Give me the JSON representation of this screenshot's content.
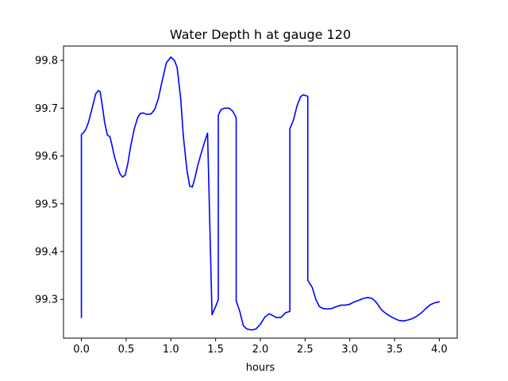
{
  "chart_data": {
    "type": "line",
    "title": "Water Depth h at gauge 120",
    "xlabel": "hours",
    "ylabel": "",
    "xlim": [
      -0.2,
      4.2
    ],
    "ylim": [
      99.219,
      99.83
    ],
    "x_ticks": [
      0.0,
      0.5,
      1.0,
      1.5,
      2.0,
      2.5,
      3.0,
      3.5,
      4.0
    ],
    "x_tick_labels": [
      "0.0",
      "0.5",
      "1.0",
      "1.5",
      "2.0",
      "2.5",
      "3.0",
      "3.5",
      "4.0"
    ],
    "y_ticks": [
      99.3,
      99.4,
      99.5,
      99.6,
      99.7,
      99.8
    ],
    "y_tick_labels": [
      "99.3",
      "99.4",
      "99.5",
      "99.6",
      "99.7",
      "99.8"
    ],
    "grid": false,
    "legend": "none",
    "series": [
      {
        "color": "#0000ff",
        "x": [
          0.0,
          0.0,
          0.02,
          0.05,
          0.08,
          0.12,
          0.16,
          0.19,
          0.21,
          0.23,
          0.26,
          0.29,
          0.32,
          0.34,
          0.37,
          0.4,
          0.43,
          0.46,
          0.49,
          0.52,
          0.55,
          0.59,
          0.63,
          0.66,
          0.69,
          0.73,
          0.78,
          0.82,
          0.86,
          0.9,
          0.95,
          1.0,
          1.04,
          1.07,
          1.11,
          1.14,
          1.18,
          1.21,
          1.24,
          1.27,
          1.3,
          1.33,
          1.37,
          1.41,
          1.46,
          1.46,
          1.5,
          1.53,
          1.53,
          1.56,
          1.6,
          1.65,
          1.69,
          1.73,
          1.73,
          1.77,
          1.81,
          1.85,
          1.9,
          1.95,
          2.0,
          2.05,
          2.1,
          2.14,
          2.18,
          2.23,
          2.28,
          2.33,
          2.33,
          2.37,
          2.41,
          2.45,
          2.48,
          2.51,
          2.53,
          2.53,
          2.58,
          2.62,
          2.66,
          2.7,
          2.75,
          2.8,
          2.85,
          2.9,
          2.95,
          3.0,
          3.05,
          3.1,
          3.15,
          3.2,
          3.25,
          3.3,
          3.35,
          3.4,
          3.45,
          3.5,
          3.55,
          3.6,
          3.65,
          3.7,
          3.75,
          3.8,
          3.85,
          3.9,
          3.95,
          4.0
        ],
        "y": [
          99.262,
          99.645,
          99.648,
          99.656,
          99.671,
          99.7,
          99.73,
          99.737,
          99.734,
          99.71,
          99.67,
          99.644,
          99.64,
          99.624,
          99.598,
          99.58,
          99.563,
          99.556,
          99.56,
          99.585,
          99.62,
          99.656,
          99.681,
          99.689,
          99.69,
          99.687,
          99.688,
          99.698,
          99.72,
          99.755,
          99.795,
          99.807,
          99.8,
          99.785,
          99.72,
          99.64,
          99.57,
          99.537,
          99.535,
          99.555,
          99.58,
          99.6,
          99.625,
          99.648,
          99.268,
          99.268,
          99.285,
          99.3,
          99.685,
          99.697,
          99.7,
          99.7,
          99.694,
          99.68,
          99.297,
          99.275,
          99.245,
          99.238,
          99.236,
          99.238,
          99.248,
          99.263,
          99.27,
          99.266,
          99.262,
          99.262,
          99.272,
          99.275,
          99.657,
          99.675,
          99.705,
          99.724,
          99.728,
          99.726,
          99.725,
          99.34,
          99.325,
          99.3,
          99.285,
          99.281,
          99.28,
          99.281,
          99.285,
          99.288,
          99.288,
          99.29,
          99.295,
          99.298,
          99.302,
          99.304,
          99.302,
          99.293,
          99.279,
          99.271,
          99.265,
          99.26,
          99.256,
          99.255,
          99.257,
          99.26,
          99.265,
          99.272,
          99.281,
          99.289,
          99.293,
          99.295
        ]
      }
    ]
  }
}
